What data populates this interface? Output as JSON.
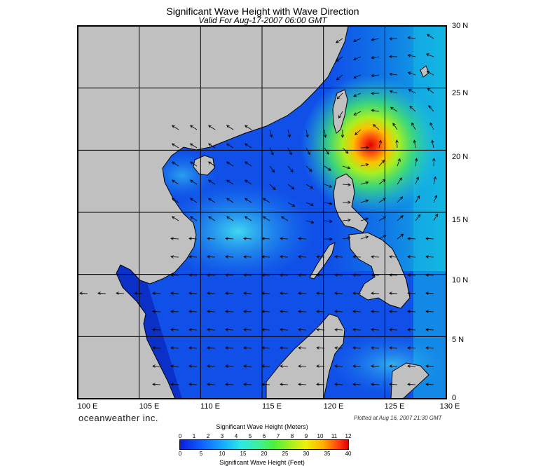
{
  "title": "Significant Wave Height with Wave Direction",
  "subtitle": "Valid For Aug-17-2007 06:00 GMT",
  "map": {
    "lon_labels": [
      "100 E",
      "105 E",
      "110 E",
      "115 E",
      "120 E",
      "125 E",
      "130 E"
    ],
    "lat_labels": [
      "30 N",
      "25 N",
      "20 N",
      "15 N",
      "10 N",
      "5 N",
      "0"
    ],
    "land_color": "#c0c0c0",
    "ocean_base_color": "#1050e8",
    "typhoon_center": {
      "lon": 123.3,
      "lat": 21.0
    }
  },
  "brand": "oceanweather inc.",
  "plotted": "Plotted at Aug 16, 2007 21:30 GMT",
  "legend": {
    "meters_title": "Significant Wave Height (Meters)",
    "feet_title": "Significant Wave Height (Feet)",
    "meters_ticks": [
      "0",
      "1",
      "2",
      "3",
      "4",
      "5",
      "6",
      "7",
      "8",
      "9",
      "10",
      "11",
      "12"
    ],
    "feet_ticks": [
      "0",
      "5",
      "10",
      "15",
      "20",
      "25",
      "30",
      "35",
      "40"
    ]
  }
}
